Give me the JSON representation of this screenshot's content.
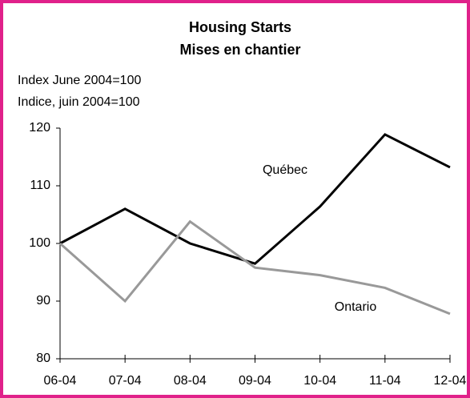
{
  "chart_data": {
    "type": "line",
    "title": "Housing Starts",
    "subtitle": "Mises en chantier",
    "y_label": [
      "Index June 2004=100",
      "Indice, juin 2004=100"
    ],
    "categories": [
      "06-04",
      "07-04",
      "08-04",
      "09-04",
      "10-04",
      "11-04",
      "12-04"
    ],
    "series": [
      {
        "name": "Québec",
        "color": "#000000",
        "values": [
          100,
          106,
          100,
          96.5,
          106.4,
          118.9,
          113.2
        ]
      },
      {
        "name": "Ontario",
        "color": "#999999",
        "values": [
          100,
          90,
          103.8,
          95.8,
          94.5,
          92.3,
          87.8
        ]
      }
    ],
    "ylim": [
      80,
      120
    ],
    "yticks": [
      80,
      90,
      100,
      110,
      120
    ],
    "grid": false,
    "legend": "inline"
  }
}
